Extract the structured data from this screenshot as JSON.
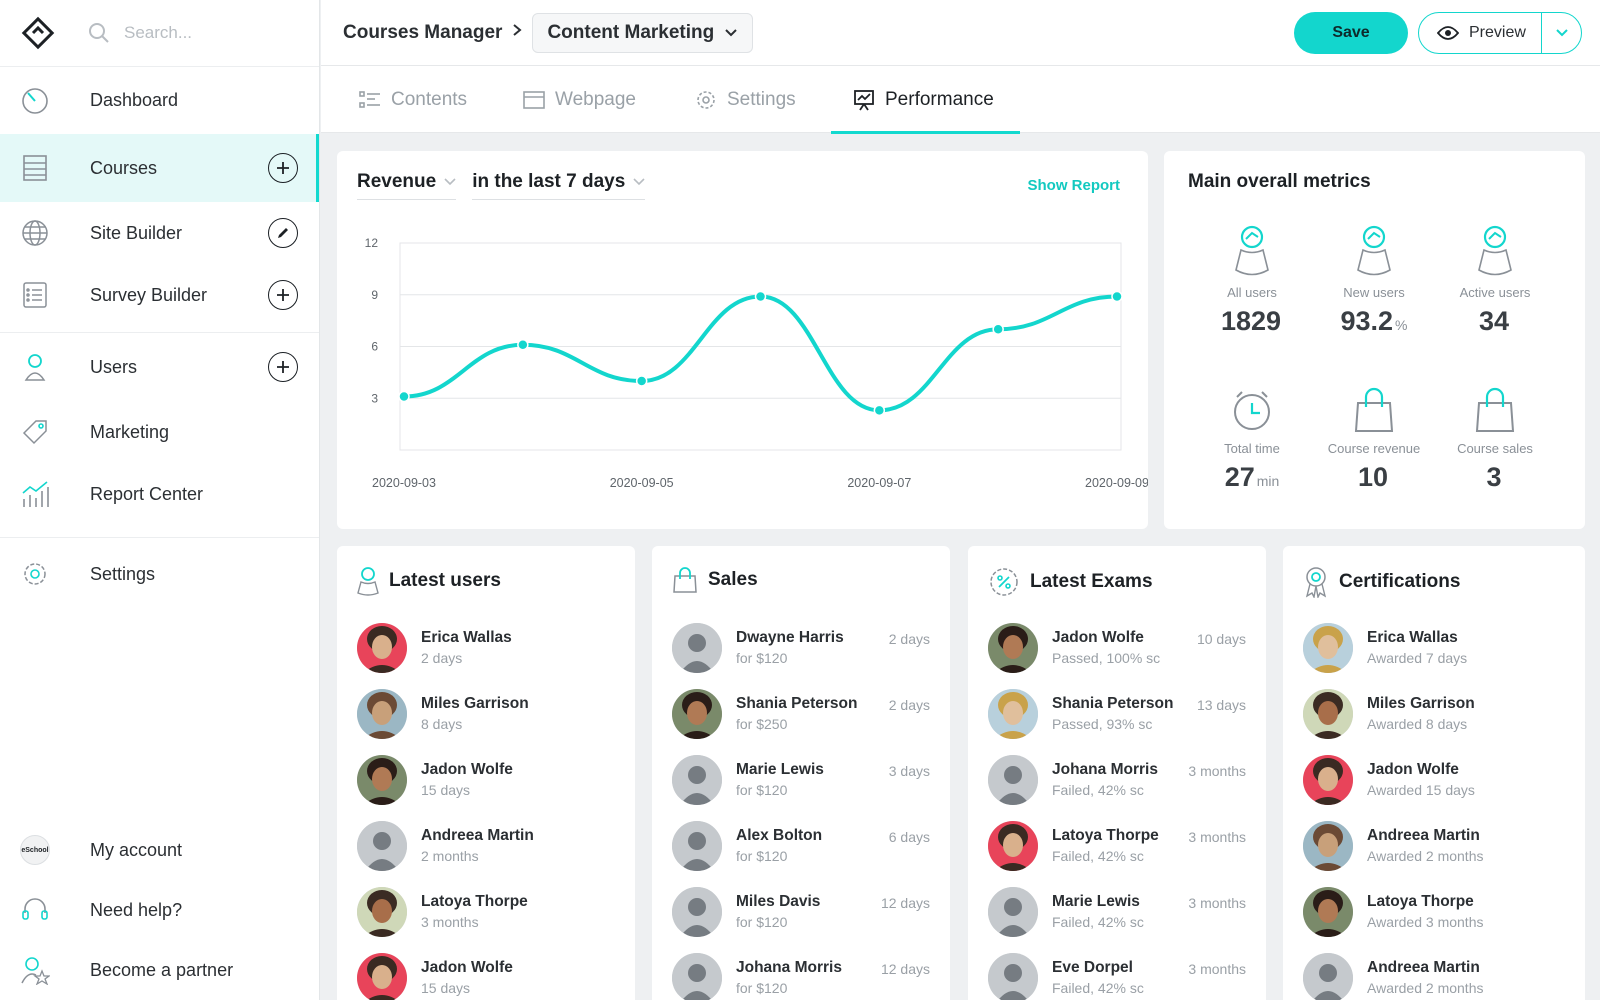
{
  "colors": {
    "accent": "#13d6cd",
    "active_bg": "#e4f9f8"
  },
  "sidebar": {
    "search_placeholder": "Search...",
    "items": [
      {
        "label": "Dashboard",
        "icon": "dashboard-gauge-icon"
      },
      {
        "label": "Courses",
        "icon": "courses-list-icon",
        "action": "add",
        "active": true
      },
      {
        "label": "Site Builder",
        "icon": "globe-icon",
        "action": "edit"
      },
      {
        "label": "Survey Builder",
        "icon": "survey-list-icon",
        "action": "add"
      },
      {
        "label": "Users",
        "icon": "user-icon",
        "action": "add"
      },
      {
        "label": "Marketing",
        "icon": "tag-icon"
      },
      {
        "label": "Report Center",
        "icon": "report-chart-icon"
      },
      {
        "label": "Settings",
        "icon": "gear-icon"
      }
    ],
    "bottom": [
      {
        "label": "My account",
        "icon": "account-avatar-icon",
        "avatar_text": "eSchool"
      },
      {
        "label": "Need help?",
        "icon": "headset-icon"
      },
      {
        "label": "Become a partner",
        "icon": "partner-star-icon"
      }
    ]
  },
  "header": {
    "breadcrumb_root": "Courses Manager",
    "breadcrumb_current": "Content Marketing",
    "save_label": "Save",
    "preview_label": "Preview"
  },
  "tabs": [
    {
      "label": "Contents",
      "icon": "contents-list-icon"
    },
    {
      "label": "Webpage",
      "icon": "webpage-icon"
    },
    {
      "label": "Settings",
      "icon": "gear-icon"
    },
    {
      "label": "Performance",
      "icon": "performance-chart-icon",
      "active": true
    }
  ],
  "revenue": {
    "metric_select": "Revenue",
    "period_select": "in the last 7 days",
    "show_report": "Show Report"
  },
  "chart_data": {
    "type": "line",
    "x": [
      "2020-09-03",
      "2020-09-04",
      "2020-09-05",
      "2020-09-06",
      "2020-09-07",
      "2020-09-08",
      "2020-09-09"
    ],
    "values": [
      3.1,
      6.1,
      4.0,
      8.9,
      2.3,
      7.0,
      8.9
    ],
    "xticks": [
      "2020-09-03",
      "2020-09-05",
      "2020-09-07",
      "2020-09-09"
    ],
    "yticks": [
      3,
      6,
      9,
      12
    ],
    "ylim": [
      0,
      12
    ],
    "title": "",
    "xlabel": "",
    "ylabel": "",
    "color": "#13d6cd",
    "grid": true
  },
  "metrics": {
    "title": "Main overall metrics",
    "items": [
      {
        "label": "All users",
        "value": "1829",
        "unit": "",
        "icon": "user-icon"
      },
      {
        "label": "New users",
        "value": "93.2",
        "unit": "%",
        "icon": "user-icon"
      },
      {
        "label": "Active users",
        "value": "34",
        "unit": "",
        "icon": "user-icon"
      },
      {
        "label": "Total time",
        "value": "27",
        "unit": "min",
        "icon": "clock-icon"
      },
      {
        "label": "Course revenue",
        "value": "10",
        "unit": "",
        "icon": "shopping-bag-icon"
      },
      {
        "label": "Course sales",
        "value": "3",
        "unit": "",
        "icon": "shopping-bag-icon"
      }
    ]
  },
  "lists": [
    {
      "title": "Latest users",
      "icon": "user-icon",
      "rows": [
        {
          "name": "Erica Wallas",
          "sub": "2 days",
          "time": "",
          "avatar": "photo"
        },
        {
          "name": "Miles Garrison",
          "sub": "8 days",
          "time": "",
          "avatar": "photo"
        },
        {
          "name": "Jadon Wolfe",
          "sub": "15 days",
          "time": "",
          "avatar": "photo"
        },
        {
          "name": "Andreea Martin",
          "sub": "2 months",
          "time": "",
          "avatar": "placeholder"
        },
        {
          "name": "Latoya Thorpe",
          "sub": "3 months",
          "time": "",
          "avatar": "photo"
        },
        {
          "name": "Jadon Wolfe",
          "sub": "15 days",
          "time": "",
          "avatar": "photo"
        }
      ]
    },
    {
      "title": "Sales",
      "icon": "shopping-bag-icon",
      "rows": [
        {
          "name": "Dwayne Harris",
          "sub": "for $120",
          "time": "2 days",
          "avatar": "placeholder"
        },
        {
          "name": "Shania Peterson",
          "sub": "for $250",
          "time": "2 days",
          "avatar": "photo"
        },
        {
          "name": "Marie Lewis",
          "sub": "for $120",
          "time": "3 days",
          "avatar": "placeholder"
        },
        {
          "name": "Alex Bolton",
          "sub": "for $120",
          "time": "6 days",
          "avatar": "placeholder"
        },
        {
          "name": "Miles Davis",
          "sub": "for $120",
          "time": "12 days",
          "avatar": "placeholder"
        },
        {
          "name": "Johana Morris",
          "sub": "for $120",
          "time": "12 days",
          "avatar": "placeholder"
        }
      ]
    },
    {
      "title": "Latest Exams",
      "icon": "percent-badge-icon",
      "rows": [
        {
          "name": "Jadon Wolfe",
          "sub": "Passed, 100% sc",
          "time": "10 days",
          "avatar": "photo"
        },
        {
          "name": "Shania Peterson",
          "sub": "Passed, 93% sc",
          "time": "13 days",
          "avatar": "photo"
        },
        {
          "name": "Johana Morris",
          "sub": "Failed, 42% sc",
          "time": "3 months",
          "avatar": "placeholder"
        },
        {
          "name": "Latoya Thorpe",
          "sub": "Failed, 42% sc",
          "time": "3 months",
          "avatar": "photo"
        },
        {
          "name": "Marie Lewis",
          "sub": "Failed, 42% sc",
          "time": "3 months",
          "avatar": "placeholder"
        },
        {
          "name": "Eve Dorpel",
          "sub": "Failed, 42% sc",
          "time": "3 months",
          "avatar": "placeholder"
        }
      ]
    },
    {
      "title": "Certifications",
      "icon": "award-ribbon-icon",
      "rows": [
        {
          "name": "Erica Wallas",
          "sub": "Awarded 7 days",
          "time": "",
          "avatar": "photo"
        },
        {
          "name": "Miles Garrison",
          "sub": "Awarded 8 days",
          "time": "",
          "avatar": "photo"
        },
        {
          "name": "Jadon Wolfe",
          "sub": "Awarded 15 days",
          "time": "",
          "avatar": "photo"
        },
        {
          "name": "Andreea Martin",
          "sub": "Awarded 2 months",
          "time": "",
          "avatar": "photo"
        },
        {
          "name": "Latoya Thorpe",
          "sub": "Awarded 3 months",
          "time": "",
          "avatar": "photo"
        },
        {
          "name": "Andreea Martin",
          "sub": "Awarded 2 months",
          "time": "",
          "avatar": "placeholder"
        }
      ]
    }
  ]
}
